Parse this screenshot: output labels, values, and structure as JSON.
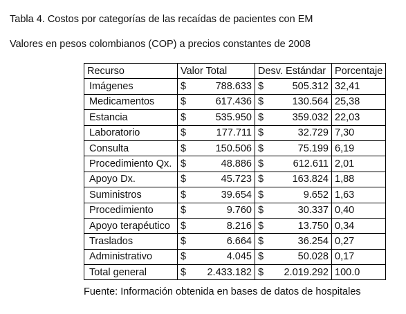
{
  "title": "Tabla 4. Costos por categorías de las recaídas de pacientes con EM",
  "subtitle": "Valores en pesos colombianos (COP) a precios constantes de 2008",
  "table": {
    "headers": [
      "Recurso",
      "Valor Total",
      "Desv. Estándar",
      "Porcentaje"
    ],
    "currency_symbol": "$",
    "rows": [
      {
        "resource": "Imágenes",
        "total": "788.633",
        "sd": "505.312",
        "pct": "32,41"
      },
      {
        "resource": "Medicamentos",
        "total": "617.436",
        "sd": "130.564",
        "pct": "25,38"
      },
      {
        "resource": "Estancia",
        "total": "535.950",
        "sd": "359.032",
        "pct": "22,03"
      },
      {
        "resource": "Laboratorio",
        "total": "177.711",
        "sd": "32.729",
        "pct": "7,30"
      },
      {
        "resource": "Consulta",
        "total": "150.506",
        "sd": "75.199",
        "pct": "6,19"
      },
      {
        "resource": "Procedimiento Qx.",
        "total": "48.886",
        "sd": "612.611",
        "pct": "2,01"
      },
      {
        "resource": "Apoyo Dx.",
        "total": "45.723",
        "sd": "163.824",
        "pct": "1,88"
      },
      {
        "resource": "Suministros",
        "total": "39.654",
        "sd": "9.652",
        "pct": "1,63"
      },
      {
        "resource": "Procedimiento",
        "total": "9.760",
        "sd": "30.337",
        "pct": "0,40"
      },
      {
        "resource": "Apoyo terapéutico",
        "total": "8.216",
        "sd": "13.750",
        "pct": "0,34"
      },
      {
        "resource": "Traslados",
        "total": "6.664",
        "sd": "36.254",
        "pct": "0,27"
      },
      {
        "resource": "Administrativo",
        "total": "4.045",
        "sd": "50.028",
        "pct": "0,17"
      },
      {
        "resource": "Total general",
        "total": "2.433.182",
        "sd": "2.019.292",
        "pct": "100.0"
      }
    ]
  },
  "footnote": "Fuente: Información obtenida en bases de datos de hospitales"
}
